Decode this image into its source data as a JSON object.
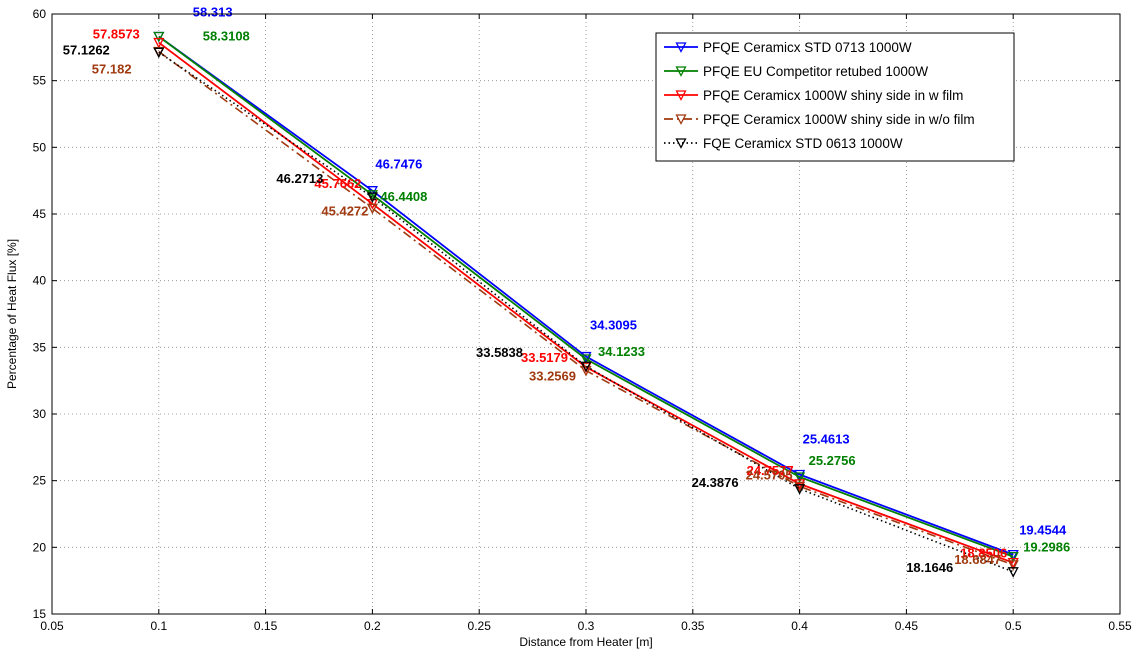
{
  "chart_data": {
    "type": "line",
    "title": "",
    "xlabel": "Distance from Heater [m]",
    "ylabel": "Percentage of Heat Flux [%]",
    "xlim": [
      0.05,
      0.55
    ],
    "ylim": [
      15,
      60
    ],
    "xticks": [
      "0.05",
      "0.1",
      "0.15",
      "0.2",
      "0.25",
      "0.3",
      "0.35",
      "0.4",
      "0.45",
      "0.5",
      "0.55"
    ],
    "yticks": [
      "15",
      "20",
      "25",
      "30",
      "35",
      "40",
      "45",
      "50",
      "55",
      "60"
    ],
    "grid": true,
    "legend_position": "top-right",
    "x": [
      0.1,
      0.2,
      0.3,
      0.4,
      0.5
    ],
    "series": [
      {
        "name": "PFQE Ceramicx STD 0713 1000W",
        "color": "#0000ff",
        "dash": "solid",
        "marker": "down-triangle",
        "values": [
          58.313,
          46.7476,
          34.3095,
          25.4613,
          19.4544
        ],
        "labels": [
          "58.313",
          "46.7476",
          "34.3095",
          "25.4613",
          "19.4544"
        ]
      },
      {
        "name": "PFQE EU Competitor retubed 1000W",
        "color": "#008000",
        "dash": "solid",
        "marker": "down-triangle",
        "values": [
          58.3108,
          46.4408,
          34.1233,
          25.2756,
          19.2986
        ],
        "labels": [
          "58.3108",
          "46.4408",
          "34.1233",
          "25.2756",
          "19.2986"
        ]
      },
      {
        "name": "PFQE Ceramicx 1000W shiny side in w film",
        "color": "#ff0000",
        "dash": "solid",
        "marker": "down-triangle",
        "values": [
          57.8573,
          45.7662,
          33.5179,
          24.7577,
          18.8506
        ],
        "labels": [
          "57.8573",
          "45.7662",
          "33.5179",
          "24.7577",
          "18.8506"
        ]
      },
      {
        "name": "PFQE Ceramicx 1000W shiny side in w/o film",
        "color": "#a0390f",
        "dash": "dashdot",
        "marker": "down-triangle",
        "values": [
          57.182,
          45.4272,
          33.2569,
          24.5705,
          18.6847
        ],
        "labels": [
          "57.182",
          "45.4272",
          "33.2569",
          "24.5705",
          "18.6847"
        ]
      },
      {
        "name": "FQE Ceramicx STD 0613 1000W",
        "color": "#000000",
        "dash": "dotted",
        "marker": "down-triangle",
        "values": [
          57.1262,
          46.2713,
          33.5838,
          24.3876,
          18.1646
        ],
        "labels": [
          "57.1262",
          "46.2713",
          "33.5838",
          "24.3876",
          "18.1646"
        ]
      }
    ]
  }
}
